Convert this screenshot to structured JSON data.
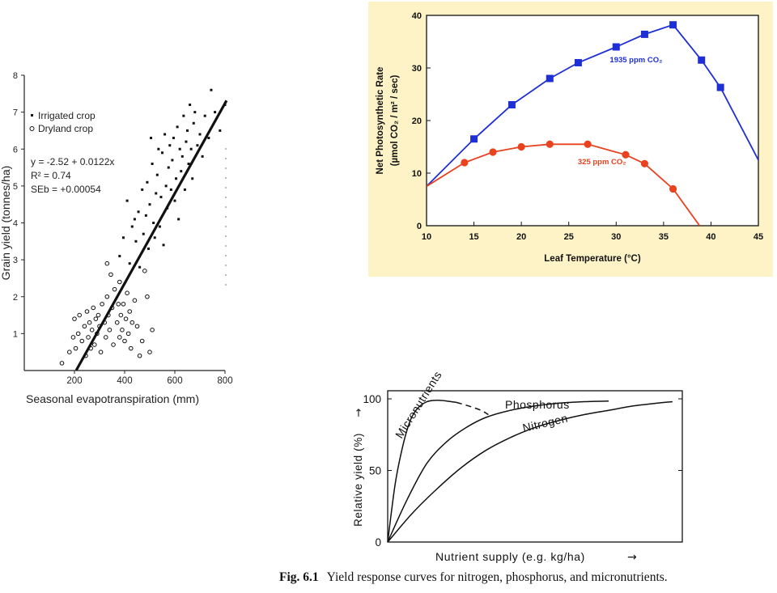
{
  "chart_data": [
    {
      "id": "evapotranspiration",
      "type": "scatter",
      "xlabel": "Seasonal evapotranspiration (mm)",
      "ylabel": "Grain yield (tonnes/ha)",
      "xlim": [
        0,
        800
      ],
      "ylim": [
        0,
        8
      ],
      "xticks": [
        200,
        400,
        600,
        800
      ],
      "yticks": [
        1,
        2,
        3,
        4,
        5,
        6,
        7,
        8
      ],
      "legend": [
        {
          "name": "Irrigated crop",
          "marker": "square"
        },
        {
          "name": "Dryland crop",
          "marker": "circle-open"
        }
      ],
      "annotations": [
        "y = -2.52 + 0.0122x",
        "R² = 0.74",
        "SEb = +0.00054"
      ],
      "fit_line": {
        "intercept": -2.52,
        "slope": 0.0122,
        "x_range": [
          207,
          806
        ]
      },
      "series": [
        {
          "name": "Irrigated crop",
          "points": [
            [
              380,
              3.1
            ],
            [
              395,
              3.6
            ],
            [
              410,
              4.6
            ],
            [
              420,
              2.9
            ],
            [
              430,
              3.9
            ],
            [
              440,
              4.1
            ],
            [
              445,
              3.5
            ],
            [
              455,
              4.3
            ],
            [
              460,
              2.8
            ],
            [
              470,
              4.9
            ],
            [
              475,
              3.7
            ],
            [
              485,
              4.2
            ],
            [
              490,
              5.1
            ],
            [
              495,
              3.3
            ],
            [
              500,
              4.5
            ],
            [
              505,
              6.3
            ],
            [
              510,
              5.6
            ],
            [
              515,
              4.0
            ],
            [
              520,
              3.6
            ],
            [
              525,
              4.8
            ],
            [
              530,
              5.3
            ],
            [
              535,
              6.0
            ],
            [
              540,
              3.9
            ],
            [
              545,
              4.7
            ],
            [
              550,
              5.9
            ],
            [
              555,
              3.4
            ],
            [
              560,
              6.4
            ],
            [
              565,
              5.0
            ],
            [
              570,
              4.4
            ],
            [
              575,
              5.5
            ],
            [
              580,
              6.1
            ],
            [
              585,
              4.9
            ],
            [
              590,
              5.7
            ],
            [
              595,
              6.3
            ],
            [
              600,
              4.6
            ],
            [
              605,
              5.2
            ],
            [
              610,
              6.6
            ],
            [
              615,
              4.1
            ],
            [
              620,
              6.0
            ],
            [
              625,
              5.4
            ],
            [
              630,
              5.8
            ],
            [
              635,
              6.9
            ],
            [
              640,
              4.9
            ],
            [
              645,
              6.2
            ],
            [
              650,
              6.5
            ],
            [
              655,
              5.6
            ],
            [
              660,
              7.2
            ],
            [
              665,
              6.0
            ],
            [
              670,
              5.2
            ],
            [
              675,
              6.7
            ],
            [
              680,
              7.0
            ],
            [
              690,
              6.1
            ],
            [
              700,
              6.4
            ],
            [
              710,
              5.8
            ],
            [
              720,
              6.9
            ],
            [
              735,
              6.3
            ],
            [
              745,
              7.6
            ],
            [
              760,
              7.0
            ],
            [
              780,
              6.5
            ],
            [
              800,
              7.2
            ]
          ]
        },
        {
          "name": "Dryland crop",
          "points": [
            [
              150,
              0.2
            ],
            [
              180,
              0.5
            ],
            [
              195,
              0.9
            ],
            [
              200,
              1.4
            ],
            [
              205,
              0.6
            ],
            [
              215,
              1.0
            ],
            [
              220,
              1.5
            ],
            [
              230,
              0.8
            ],
            [
              240,
              1.2
            ],
            [
              245,
              0.4
            ],
            [
              250,
              1.6
            ],
            [
              255,
              0.9
            ],
            [
              260,
              1.3
            ],
            [
              265,
              0.6
            ],
            [
              270,
              1.1
            ],
            [
              275,
              1.7
            ],
            [
              280,
              0.7
            ],
            [
              285,
              1.4
            ],
            [
              290,
              1.0
            ],
            [
              295,
              1.5
            ],
            [
              300,
              1.2
            ],
            [
              305,
              0.5
            ],
            [
              310,
              1.8
            ],
            [
              320,
              1.3
            ],
            [
              325,
              0.9
            ],
            [
              330,
              2.0
            ],
            [
              335,
              1.5
            ],
            [
              340,
              1.1
            ],
            [
              345,
              2.6
            ],
            [
              350,
              1.7
            ],
            [
              355,
              0.7
            ],
            [
              360,
              2.2
            ],
            [
              370,
              1.3
            ],
            [
              375,
              1.8
            ],
            [
              380,
              0.9
            ],
            [
              385,
              1.5
            ],
            [
              390,
              1.1
            ],
            [
              395,
              1.8
            ],
            [
              400,
              0.8
            ],
            [
              405,
              1.4
            ],
            [
              410,
              2.1
            ],
            [
              415,
              1.0
            ],
            [
              420,
              1.6
            ],
            [
              425,
              0.6
            ],
            [
              430,
              1.3
            ],
            [
              440,
              1.9
            ],
            [
              450,
              1.2
            ],
            [
              460,
              0.4
            ],
            [
              470,
              0.8
            ],
            [
              480,
              2.7
            ],
            [
              490,
              2.0
            ],
            [
              500,
              0.5
            ],
            [
              510,
              1.1
            ],
            [
              380,
              2.4
            ],
            [
              330,
              2.9
            ]
          ]
        }
      ]
    },
    {
      "id": "photosynthesis",
      "type": "line",
      "xlabel": "Leaf Temperature (°C)",
      "ylabel": "Net Photosynthetic Rate (µmol CO₂ / m² / sec)",
      "xlim": [
        10,
        45
      ],
      "ylim": [
        0,
        40
      ],
      "xticks": [
        10,
        15,
        20,
        25,
        30,
        35,
        40,
        45
      ],
      "yticks": [
        0,
        10,
        20,
        30,
        40
      ],
      "grid": false,
      "colors": {
        "background": "#fdf3c6",
        "high_co2": "#1e2fd6",
        "low_co2": "#e8421f"
      },
      "series": [
        {
          "name": "1935 ppm CO₂",
          "line": [
            [
              10,
              7.5
            ],
            [
              15,
              16.5
            ],
            [
              19,
              23
            ],
            [
              23,
              28
            ],
            [
              26,
              31
            ],
            [
              30,
              34
            ],
            [
              33,
              36.4
            ],
            [
              36,
              38.2
            ],
            [
              39,
              31.5
            ],
            [
              41,
              26.3
            ],
            [
              45,
              12.5
            ]
          ],
          "markers": [
            [
              15,
              16.5
            ],
            [
              19,
              23
            ],
            [
              23,
              28
            ],
            [
              26,
              31
            ],
            [
              30,
              34
            ],
            [
              33,
              36.4
            ],
            [
              36,
              38.2
            ],
            [
              39,
              31.5
            ],
            [
              41,
              26.3
            ]
          ]
        },
        {
          "name": "325 ppm CO₂",
          "line": [
            [
              10,
              7.5
            ],
            [
              14,
              12
            ],
            [
              17,
              14
            ],
            [
              20,
              15
            ],
            [
              23,
              15.5
            ],
            [
              27,
              15.5
            ],
            [
              31,
              13.5
            ],
            [
              33,
              11.8
            ],
            [
              36,
              7
            ],
            [
              38.8,
              0
            ]
          ],
          "markers": [
            [
              14,
              12
            ],
            [
              17,
              14
            ],
            [
              20,
              15
            ],
            [
              23,
              15.5
            ],
            [
              27,
              15.5
            ],
            [
              31,
              13.5
            ],
            [
              33,
              11.8
            ],
            [
              36,
              7
            ]
          ]
        }
      ]
    },
    {
      "id": "nutrients",
      "type": "line",
      "xlabel": "Nutrient supply (e.g. kg/ha)",
      "ylabel": "Relative yield (%)",
      "ylim": [
        0,
        100
      ],
      "yticks": [
        0,
        50,
        100
      ],
      "x_arrow": "→",
      "y_arrow": "→",
      "series": [
        {
          "name": "Micronutrients",
          "line": [
            [
              0,
              0
            ],
            [
              3,
              40
            ],
            [
              6,
              66
            ],
            [
              9,
              84
            ],
            [
              12,
              93
            ],
            [
              16,
              98
            ],
            [
              20,
              99
            ],
            [
              24,
              98.5
            ],
            [
              28,
              97.5
            ]
          ],
          "dashed_tail": [
            [
              28,
              97.5
            ],
            [
              33,
              95
            ],
            [
              38,
              92
            ],
            [
              41,
              89
            ]
          ]
        },
        {
          "name": "Phosphorus",
          "line": [
            [
              0,
              0
            ],
            [
              8,
              30
            ],
            [
              16,
              55
            ],
            [
              24,
              70
            ],
            [
              32,
              80
            ],
            [
              40,
              87
            ],
            [
              50,
              92
            ],
            [
              60,
              95
            ],
            [
              70,
              97
            ],
            [
              80,
              98
            ],
            [
              90,
              98.5
            ]
          ]
        },
        {
          "name": "Nitrogen",
          "line": [
            [
              0,
              0
            ],
            [
              10,
              20
            ],
            [
              20,
              37
            ],
            [
              30,
              52
            ],
            [
              40,
              64
            ],
            [
              50,
              73
            ],
            [
              60,
              80
            ],
            [
              70,
              85
            ],
            [
              80,
              89
            ],
            [
              90,
              92
            ],
            [
              100,
              95
            ],
            [
              110,
              97
            ],
            [
              116,
              98
            ]
          ]
        }
      ]
    }
  ],
  "caption": {
    "number": "Fig. 6.1",
    "text": "Yield response curves for nitrogen, phosphorus, and micronutrients."
  }
}
